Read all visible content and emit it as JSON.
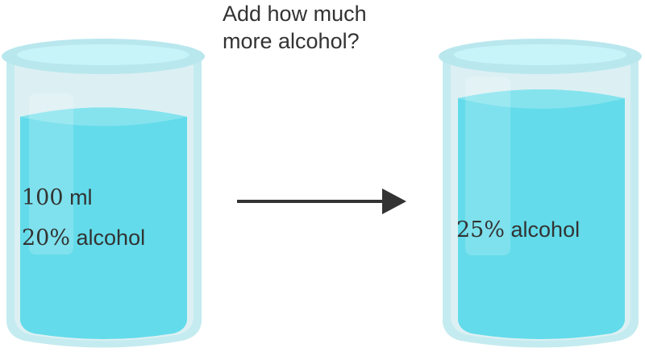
{
  "question": {
    "line1": "Add how much",
    "line2": "more alcohol?"
  },
  "left_beaker": {
    "volume_number": "100",
    "volume_unit": "ml",
    "percent": "20%",
    "substance": "alcohol"
  },
  "right_beaker": {
    "percent": "25%",
    "substance": "alcohol"
  },
  "colors": {
    "liquid": "#63dbea",
    "glass": "#c4ebf0",
    "rim": "#b9e7ee",
    "rim_inner": "#c6f4f9",
    "arrow": "#333333",
    "text": "#333333"
  }
}
